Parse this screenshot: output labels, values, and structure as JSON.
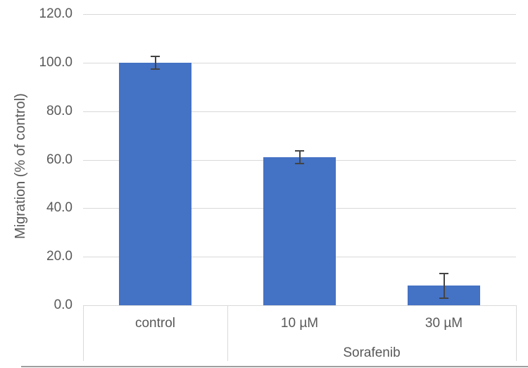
{
  "chart_data": {
    "type": "bar",
    "title": "",
    "ylabel": "Migration (% of control)",
    "xlabel": "",
    "categories": [
      "control",
      "10 µM",
      "30 µM"
    ],
    "values": [
      100.0,
      61.0,
      8.0
    ],
    "error_bars": [
      3.0,
      3.0,
      5.5
    ],
    "ylim": [
      0,
      120
    ],
    "ytick_step": 20,
    "ytick_labels": [
      "120.0",
      "100.0",
      "80.0",
      "60.0",
      "40.0",
      "20.0",
      "0.0"
    ],
    "x_group": {
      "label": "Sorafenib",
      "start_index": 1,
      "end_index": 2
    },
    "grid": true,
    "legend": "none",
    "colors": {
      "bar": "#4472c4",
      "error_bar": "#444444",
      "gridline": "#d9d9d9",
      "axis_line": "#d9d9d9",
      "text": "#595959"
    }
  }
}
